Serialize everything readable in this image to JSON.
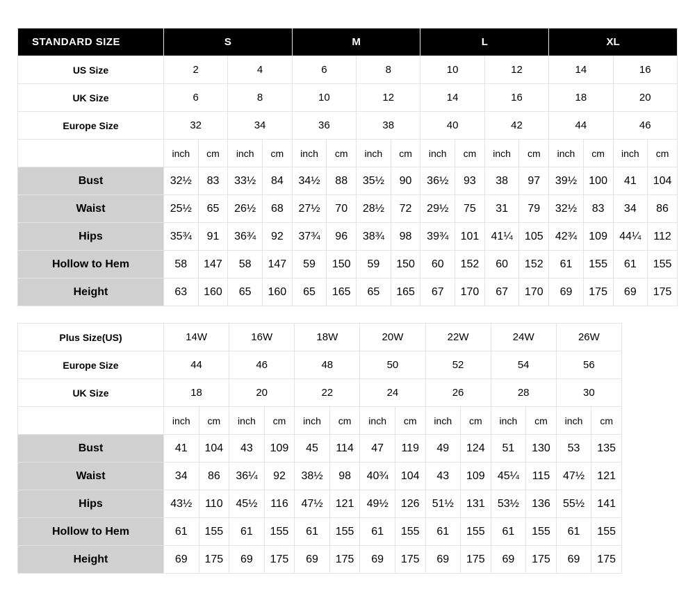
{
  "table1": {
    "header_label": "STANDARD SIZE",
    "sizes": [
      "S",
      "M",
      "L",
      "XL"
    ],
    "size_rows": [
      {
        "label": "US Size",
        "values": [
          "2",
          "4",
          "6",
          "8",
          "10",
          "12",
          "14",
          "16"
        ]
      },
      {
        "label": "UK Size",
        "values": [
          "6",
          "8",
          "10",
          "12",
          "14",
          "16",
          "18",
          "20"
        ]
      },
      {
        "label": "Europe Size",
        "values": [
          "32",
          "34",
          "36",
          "38",
          "40",
          "42",
          "44",
          "46"
        ]
      }
    ],
    "unit_pair": [
      "inch",
      "cm"
    ],
    "measurements": [
      {
        "label": "Bust",
        "values": [
          "32½",
          "83",
          "33½",
          "84",
          "34½",
          "88",
          "35½",
          "90",
          "36½",
          "93",
          "38",
          "97",
          "39½",
          "100",
          "41",
          "104"
        ]
      },
      {
        "label": "Waist",
        "values": [
          "25½",
          "65",
          "26½",
          "68",
          "27½",
          "70",
          "28½",
          "72",
          "29½",
          "75",
          "31",
          "79",
          "32½",
          "83",
          "34",
          "86"
        ]
      },
      {
        "label": "Hips",
        "values": [
          "35¾",
          "91",
          "36¾",
          "92",
          "37¾",
          "96",
          "38¾",
          "98",
          "39¾",
          "101",
          "41¼",
          "105",
          "42¾",
          "109",
          "44¼",
          "112"
        ]
      },
      {
        "label": "Hollow to Hem",
        "values": [
          "58",
          "147",
          "58",
          "147",
          "59",
          "150",
          "59",
          "150",
          "60",
          "152",
          "60",
          "152",
          "61",
          "155",
          "61",
          "155"
        ]
      },
      {
        "label": "Height",
        "values": [
          "63",
          "160",
          "65",
          "160",
          "65",
          "165",
          "65",
          "165",
          "67",
          "170",
          "67",
          "170",
          "69",
          "175",
          "69",
          "175"
        ]
      }
    ]
  },
  "table2": {
    "size_rows": [
      {
        "label": "Plus Size(US)",
        "values": [
          "14W",
          "16W",
          "18W",
          "20W",
          "22W",
          "24W",
          "26W"
        ]
      },
      {
        "label": "Europe Size",
        "values": [
          "44",
          "46",
          "48",
          "50",
          "52",
          "54",
          "56"
        ]
      },
      {
        "label": "UK Size",
        "values": [
          "18",
          "20",
          "22",
          "24",
          "26",
          "28",
          "30"
        ]
      }
    ],
    "unit_pair": [
      "inch",
      "cm"
    ],
    "measurements": [
      {
        "label": "Bust",
        "values": [
          "41",
          "104",
          "43",
          "109",
          "45",
          "114",
          "47",
          "119",
          "49",
          "124",
          "51",
          "130",
          "53",
          "135"
        ]
      },
      {
        "label": "Waist",
        "values": [
          "34",
          "86",
          "36¼",
          "92",
          "38½",
          "98",
          "40¾",
          "104",
          "43",
          "109",
          "45¼",
          "115",
          "47½",
          "121"
        ]
      },
      {
        "label": "Hips",
        "values": [
          "43½",
          "110",
          "45½",
          "116",
          "47½",
          "121",
          "49½",
          "126",
          "51½",
          "131",
          "53½",
          "136",
          "55½",
          "141"
        ]
      },
      {
        "label": "Hollow to Hem",
        "values": [
          "61",
          "155",
          "61",
          "155",
          "61",
          "155",
          "61",
          "155",
          "61",
          "155",
          "61",
          "155",
          "61",
          "155"
        ]
      },
      {
        "label": "Height",
        "values": [
          "69",
          "175",
          "69",
          "175",
          "69",
          "175",
          "69",
          "175",
          "69",
          "175",
          "69",
          "175",
          "69",
          "175"
        ]
      }
    ]
  },
  "colors": {
    "header_bg": "#000000",
    "header_fg": "#ffffff",
    "shaded_bg": "#d0d0d0",
    "border": "#e3e3e3",
    "outer_border": "#000000"
  }
}
